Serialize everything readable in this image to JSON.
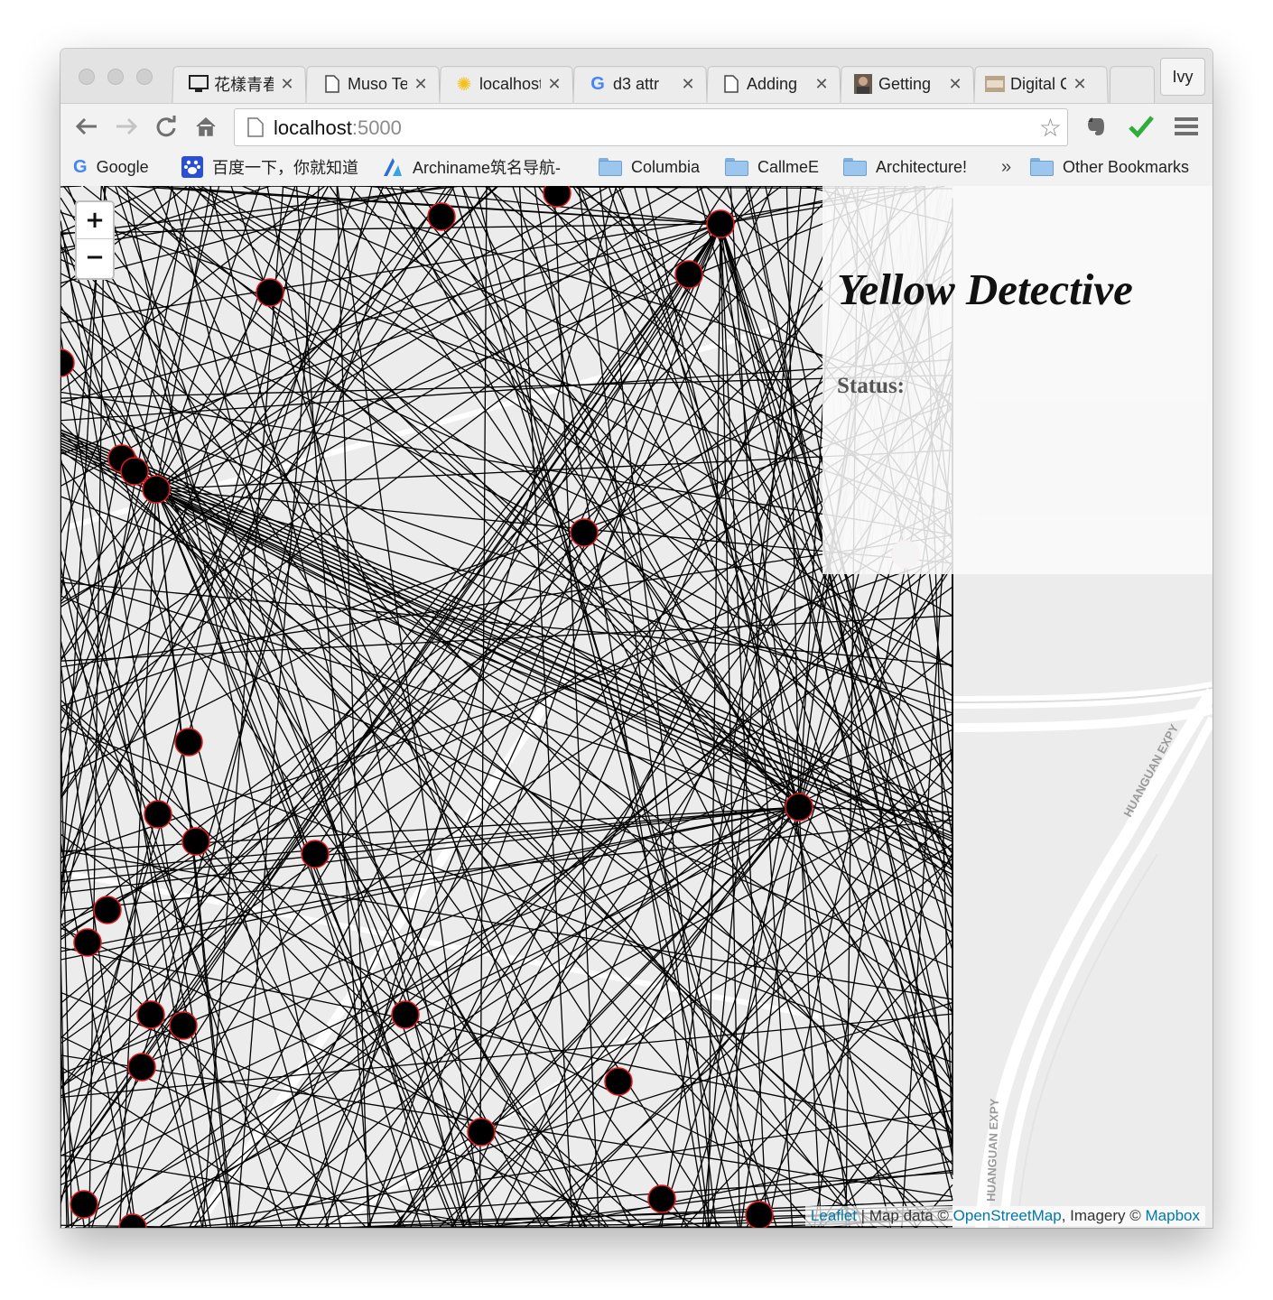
{
  "browser": {
    "tabs": [
      {
        "title": "花樣青春",
        "icon": "monitor-icon"
      },
      {
        "title": "Muso Te",
        "icon": "page-icon"
      },
      {
        "title": "localhost",
        "icon": "sun-icon"
      },
      {
        "title": "d3 attr",
        "icon": "google-icon"
      },
      {
        "title": "Adding",
        "icon": "page-icon"
      },
      {
        "title": "Getting",
        "icon": "avatar-icon"
      },
      {
        "title": "Digital C",
        "icon": "thumbnail-icon"
      }
    ],
    "profile_label": "Ivy",
    "url_host": "localhost",
    "url_port": ":5000"
  },
  "bookmarks": [
    {
      "label": "Google",
      "icon": "google-icon"
    },
    {
      "label": "百度一下，你就知道",
      "icon": "baidu-paw-icon"
    },
    {
      "label": "Archiname筑名导航-",
      "icon": "archiname-icon"
    },
    {
      "label": "Columbia",
      "icon": "folder-icon"
    },
    {
      "label": "CallmeE",
      "icon": "folder-icon"
    },
    {
      "label": "Architecture!",
      "icon": "folder-icon"
    }
  ],
  "bookmarks_overflow": "»",
  "other_bookmarks": "Other Bookmarks",
  "map": {
    "zoom_in": "+",
    "zoom_out": "−",
    "road_labels": [
      "HUANGUAN EXPY",
      "HUANGUAN EXPY"
    ],
    "attribution": {
      "leaflet": "Leaflet",
      "sep": " | Map data © ",
      "osm": "OpenStreetMap",
      "mid": ", Imagery © ",
      "mapbox": "Mapbox"
    }
  },
  "panel": {
    "title": "Yellow Detective",
    "status_label": "Status:"
  },
  "colors": {
    "node_fill": "#000000",
    "node_stroke": "#e21b1b",
    "line": "#000000",
    "map_bg": "#ececec",
    "link": "#0078a8"
  }
}
